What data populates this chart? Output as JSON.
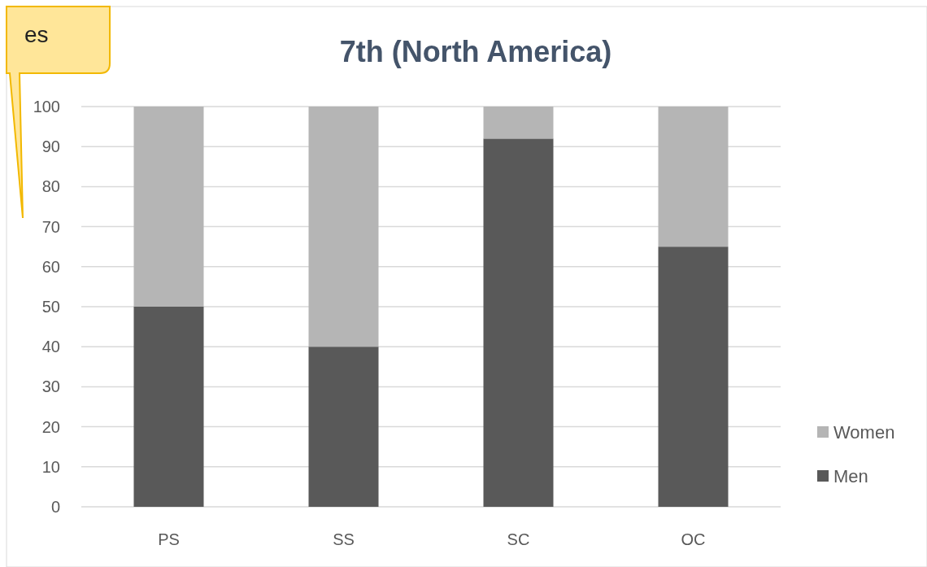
{
  "chart_data": {
    "type": "bar",
    "title": "7th (North America)",
    "stacked": true,
    "categories": [
      "PS",
      "SS",
      "SC",
      "OC"
    ],
    "series": [
      {
        "name": "Men",
        "color": "#595959",
        "values": [
          50,
          40,
          92,
          65
        ]
      },
      {
        "name": "Women",
        "color": "#b5b5b5",
        "values": [
          50,
          60,
          8,
          35
        ]
      }
    ],
    "ylim": [
      0,
      100
    ],
    "yticks": [
      0,
      10,
      20,
      30,
      40,
      50,
      60,
      70,
      80,
      90,
      100
    ],
    "grid": "y",
    "legend": "right",
    "annotations": [
      "es"
    ]
  }
}
